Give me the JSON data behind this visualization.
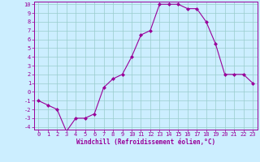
{
  "xlabel": "Windchill (Refroidissement éolien,°C)",
  "x": [
    0,
    1,
    2,
    3,
    4,
    5,
    6,
    7,
    8,
    9,
    10,
    11,
    12,
    13,
    14,
    15,
    16,
    17,
    18,
    19,
    20,
    21,
    22,
    23
  ],
  "y": [
    -1.0,
    -1.5,
    -2.0,
    -4.5,
    -3.0,
    -3.0,
    -2.5,
    0.5,
    1.5,
    2.0,
    4.0,
    6.5,
    7.0,
    10.0,
    10.0,
    10.0,
    9.5,
    9.5,
    8.0,
    5.5,
    2.0,
    2.0,
    2.0,
    1.0
  ],
  "ylim_min": -4,
  "ylim_max": 10,
  "line_color": "#990099",
  "marker": "D",
  "marker_size": 2.0,
  "bg_color": "#cceeff",
  "grid_color": "#99cccc",
  "tick_color": "#990099",
  "xlabel_color": "#990099",
  "spine_color": "#990099",
  "yticks": [
    -4,
    -3,
    -2,
    -1,
    0,
    1,
    2,
    3,
    4,
    5,
    6,
    7,
    8,
    9,
    10
  ],
  "xticks": [
    0,
    1,
    2,
    3,
    4,
    5,
    6,
    7,
    8,
    9,
    10,
    11,
    12,
    13,
    14,
    15,
    16,
    17,
    18,
    19,
    20,
    21,
    22,
    23
  ],
  "tick_fontsize": 5.0,
  "xlabel_fontsize": 5.5
}
